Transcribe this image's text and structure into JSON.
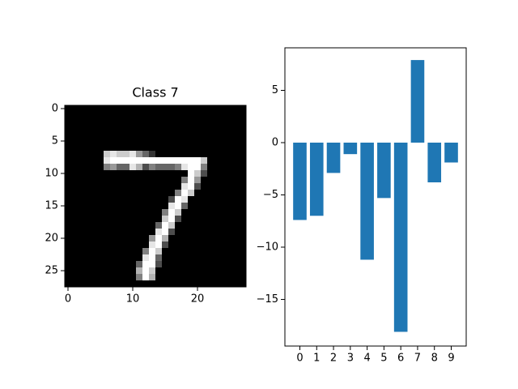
{
  "chart_data": [
    {
      "type": "image",
      "title": "Class 7",
      "xlim": [
        -0.5,
        27.5
      ],
      "ylim": [
        27.5,
        -0.5
      ],
      "xticks": [
        0,
        10,
        20
      ],
      "yticks": [
        0,
        5,
        10,
        15,
        20,
        25
      ],
      "values": [
        [
          0,
          0,
          0,
          0,
          0,
          0,
          0,
          0,
          0,
          0,
          0,
          0,
          0,
          0,
          0,
          0,
          0,
          0,
          0,
          0,
          0,
          0,
          0,
          0,
          0,
          0,
          0,
          0
        ],
        [
          0,
          0,
          0,
          0,
          0,
          0,
          0,
          0,
          0,
          0,
          0,
          0,
          0,
          0,
          0,
          0,
          0,
          0,
          0,
          0,
          0,
          0,
          0,
          0,
          0,
          0,
          0,
          0
        ],
        [
          0,
          0,
          0,
          0,
          0,
          0,
          0,
          0,
          0,
          0,
          0,
          0,
          0,
          0,
          0,
          0,
          0,
          0,
          0,
          0,
          0,
          0,
          0,
          0,
          0,
          0,
          0,
          0
        ],
        [
          0,
          0,
          0,
          0,
          0,
          0,
          0,
          0,
          0,
          0,
          0,
          0,
          0,
          0,
          0,
          0,
          0,
          0,
          0,
          0,
          0,
          0,
          0,
          0,
          0,
          0,
          0,
          0
        ],
        [
          0,
          0,
          0,
          0,
          0,
          0,
          0,
          0,
          0,
          0,
          0,
          0,
          0,
          0,
          0,
          0,
          0,
          0,
          0,
          0,
          0,
          0,
          0,
          0,
          0,
          0,
          0,
          0
        ],
        [
          0,
          0,
          0,
          0,
          0,
          0,
          0,
          0,
          0,
          0,
          0,
          0,
          0,
          0,
          0,
          0,
          0,
          0,
          0,
          0,
          0,
          0,
          0,
          0,
          0,
          0,
          0,
          0
        ],
        [
          0,
          0,
          0,
          0,
          0,
          0,
          0,
          0,
          0,
          0,
          0,
          0,
          0,
          0,
          0,
          0,
          0,
          0,
          0,
          0,
          0,
          0,
          0,
          0,
          0,
          0,
          0,
          0
        ],
        [
          0,
          0,
          0,
          0,
          0,
          0,
          0.8,
          0.9,
          0.8,
          0.8,
          0.9,
          0.6,
          0.4,
          0.2,
          0,
          0,
          0,
          0,
          0,
          0,
          0,
          0,
          0,
          0,
          0,
          0,
          0,
          0
        ],
        [
          0,
          0,
          0,
          0,
          0,
          0,
          0.9,
          1,
          1,
          1,
          1,
          1,
          1,
          1,
          1,
          1,
          1,
          1,
          1,
          1,
          1,
          0.8,
          0,
          0,
          0,
          0,
          0,
          0
        ],
        [
          0,
          0,
          0,
          0,
          0,
          0,
          0.5,
          0.6,
          0.4,
          0.4,
          0.9,
          0.7,
          0.3,
          0.5,
          0.4,
          0.4,
          0.4,
          0.5,
          0.9,
          1,
          1,
          0.5,
          0,
          0,
          0,
          0,
          0,
          0
        ],
        [
          0,
          0,
          0,
          0,
          0,
          0,
          0,
          0,
          0,
          0,
          0,
          0,
          0,
          0,
          0,
          0,
          0,
          0,
          0,
          1,
          0.8,
          0.3,
          0,
          0,
          0,
          0,
          0,
          0
        ],
        [
          0,
          0,
          0,
          0,
          0,
          0,
          0,
          0,
          0,
          0,
          0,
          0,
          0,
          0,
          0,
          0,
          0,
          0,
          0.5,
          1,
          0.6,
          0,
          0,
          0,
          0,
          0,
          0,
          0
        ],
        [
          0,
          0,
          0,
          0,
          0,
          0,
          0,
          0,
          0,
          0,
          0,
          0,
          0,
          0,
          0,
          0,
          0,
          0,
          0.9,
          1,
          0.3,
          0,
          0,
          0,
          0,
          0,
          0,
          0
        ],
        [
          0,
          0,
          0,
          0,
          0,
          0,
          0,
          0,
          0,
          0,
          0,
          0,
          0,
          0,
          0,
          0,
          0,
          0.5,
          1,
          0.8,
          0,
          0,
          0,
          0,
          0,
          0,
          0,
          0
        ],
        [
          0,
          0,
          0,
          0,
          0,
          0,
          0,
          0,
          0,
          0,
          0,
          0,
          0,
          0,
          0,
          0,
          0.3,
          1,
          0.9,
          0,
          0,
          0,
          0,
          0,
          0,
          0,
          0,
          0
        ],
        [
          0,
          0,
          0,
          0,
          0,
          0,
          0,
          0,
          0,
          0,
          0,
          0,
          0,
          0,
          0,
          0,
          0.9,
          1,
          0.4,
          0,
          0,
          0,
          0,
          0,
          0,
          0,
          0,
          0
        ],
        [
          0,
          0,
          0,
          0,
          0,
          0,
          0,
          0,
          0,
          0,
          0,
          0,
          0,
          0,
          0,
          0.5,
          1,
          0.8,
          0,
          0,
          0,
          0,
          0,
          0,
          0,
          0,
          0,
          0
        ],
        [
          0,
          0,
          0,
          0,
          0,
          0,
          0,
          0,
          0,
          0,
          0,
          0,
          0,
          0,
          0,
          0.8,
          1,
          0.3,
          0,
          0,
          0,
          0,
          0,
          0,
          0,
          0,
          0,
          0
        ],
        [
          0,
          0,
          0,
          0,
          0,
          0,
          0,
          0,
          0,
          0,
          0,
          0,
          0,
          0,
          0.4,
          1,
          0.8,
          0,
          0,
          0,
          0,
          0,
          0,
          0,
          0,
          0,
          0,
          0
        ],
        [
          0,
          0,
          0,
          0,
          0,
          0,
          0,
          0,
          0,
          0,
          0,
          0,
          0,
          0,
          0.9,
          1,
          0.3,
          0,
          0,
          0,
          0,
          0,
          0,
          0,
          0,
          0,
          0,
          0
        ],
        [
          0,
          0,
          0,
          0,
          0,
          0,
          0,
          0,
          0,
          0,
          0,
          0,
          0,
          0.6,
          1,
          0.7,
          0,
          0,
          0,
          0,
          0,
          0,
          0,
          0,
          0,
          0,
          0,
          0
        ],
        [
          0,
          0,
          0,
          0,
          0,
          0,
          0,
          0,
          0,
          0,
          0,
          0,
          0,
          0.9,
          1,
          0.3,
          0,
          0,
          0,
          0,
          0,
          0,
          0,
          0,
          0,
          0,
          0,
          0
        ],
        [
          0,
          0,
          0,
          0,
          0,
          0,
          0,
          0,
          0,
          0,
          0,
          0,
          0.5,
          1,
          0.8,
          0,
          0,
          0,
          0,
          0,
          0,
          0,
          0,
          0,
          0,
          0,
          0,
          0
        ],
        [
          0,
          0,
          0,
          0,
          0,
          0,
          0,
          0,
          0,
          0,
          0,
          0,
          0.9,
          1,
          0.4,
          0,
          0,
          0,
          0,
          0,
          0,
          0,
          0,
          0,
          0,
          0,
          0,
          0
        ],
        [
          0,
          0,
          0,
          0,
          0,
          0,
          0,
          0,
          0,
          0,
          0,
          0.4,
          1,
          1,
          0.3,
          0,
          0,
          0,
          0,
          0,
          0,
          0,
          0,
          0,
          0,
          0,
          0,
          0
        ],
        [
          0,
          0,
          0,
          0,
          0,
          0,
          0,
          0,
          0,
          0,
          0,
          0.7,
          1,
          0.8,
          0,
          0,
          0,
          0,
          0,
          0,
          0,
          0,
          0,
          0,
          0,
          0,
          0,
          0
        ],
        [
          0,
          0,
          0,
          0,
          0,
          0,
          0,
          0,
          0,
          0,
          0,
          0.5,
          1,
          0.7,
          0,
          0,
          0,
          0,
          0,
          0,
          0,
          0,
          0,
          0,
          0,
          0,
          0,
          0
        ],
        [
          0,
          0,
          0,
          0,
          0,
          0,
          0,
          0,
          0,
          0,
          0,
          0,
          0,
          0,
          0,
          0,
          0,
          0,
          0,
          0,
          0,
          0,
          0,
          0,
          0,
          0,
          0,
          0
        ]
      ]
    },
    {
      "type": "bar",
      "color": "#1f77b4",
      "x": [
        0,
        1,
        2,
        3,
        4,
        5,
        6,
        7,
        8,
        9
      ],
      "values": [
        -7.4,
        -7.0,
        -2.9,
        -1.1,
        -11.2,
        -5.3,
        -18.1,
        7.9,
        -3.8,
        -1.9
      ],
      "xlim": [
        -0.89,
        9.89
      ],
      "ylim": [
        -19.46,
        9.07
      ],
      "xticks": [
        0,
        1,
        2,
        3,
        4,
        5,
        6,
        7,
        8,
        9
      ],
      "yticks": [
        {
          "value": -15,
          "label": "−15"
        },
        {
          "value": -10,
          "label": "−10"
        },
        {
          "value": -5,
          "label": "−5"
        },
        0,
        5
      ]
    }
  ]
}
